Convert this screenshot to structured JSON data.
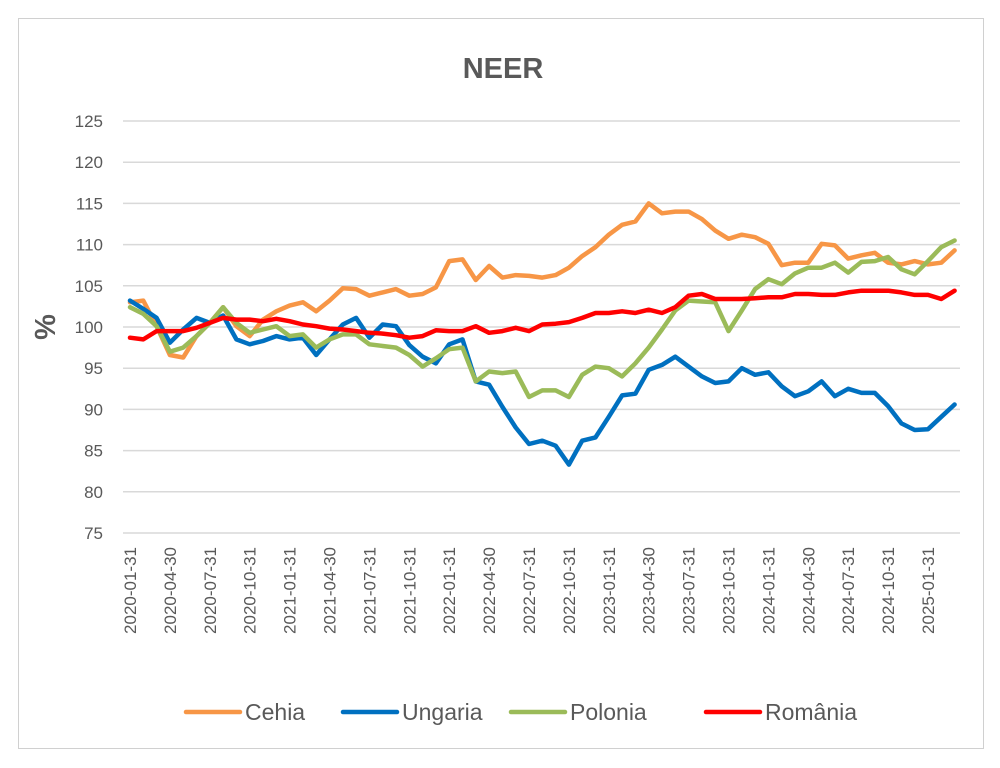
{
  "chart_data": {
    "type": "line",
    "title": "NEER",
    "xlabel": "",
    "ylabel": "%",
    "ylim": [
      75,
      125
    ],
    "yticks": [
      75,
      80,
      85,
      90,
      95,
      100,
      105,
      110,
      115,
      120,
      125
    ],
    "grid": true,
    "legend_position": "bottom",
    "x": [
      "2020-01-31",
      "2020-02-29",
      "2020-03-31",
      "2020-04-30",
      "2020-05-31",
      "2020-06-30",
      "2020-07-31",
      "2020-08-31",
      "2020-09-30",
      "2020-10-31",
      "2020-11-30",
      "2020-12-31",
      "2021-01-31",
      "2021-02-28",
      "2021-03-31",
      "2021-04-30",
      "2021-05-31",
      "2021-06-30",
      "2021-07-31",
      "2021-08-31",
      "2021-09-30",
      "2021-10-31",
      "2021-11-30",
      "2021-12-31",
      "2022-01-31",
      "2022-02-28",
      "2022-03-31",
      "2022-04-30",
      "2022-05-31",
      "2022-06-30",
      "2022-07-31",
      "2022-08-31",
      "2022-09-30",
      "2022-10-31",
      "2022-11-30",
      "2022-12-31",
      "2023-01-31",
      "2023-02-28",
      "2023-03-31",
      "2023-04-30",
      "2023-05-31",
      "2023-06-30",
      "2023-07-31",
      "2023-08-31",
      "2023-09-30",
      "2023-10-31",
      "2023-11-30",
      "2023-12-31",
      "2024-01-31",
      "2024-02-29",
      "2024-03-31",
      "2024-04-30",
      "2024-05-31",
      "2024-06-30",
      "2024-07-31",
      "2024-08-31",
      "2024-09-30",
      "2024-10-31",
      "2024-11-30",
      "2024-12-31",
      "2025-01-31",
      "2025-02-28",
      "2025-03-31"
    ],
    "tick_labels": [
      "2020-01-31",
      "2020-04-30",
      "2020-07-31",
      "2020-10-31",
      "2021-01-31",
      "2021-04-30",
      "2021-07-31",
      "2021-10-31",
      "2022-01-31",
      "2022-04-30",
      "2022-07-31",
      "2022-10-31",
      "2023-01-31",
      "2023-04-30",
      "2023-07-31",
      "2023-10-31",
      "2024-01-31",
      "2024-04-30",
      "2024-07-31",
      "2024-10-31",
      "2025-01-31"
    ],
    "series": [
      {
        "name": "Cehia",
        "color": "#F79646",
        "values": [
          103,
          103.2,
          100.1,
          96.6,
          96.3,
          98.9,
          100.5,
          102.4,
          100.1,
          98.9,
          100.9,
          101.9,
          102.6,
          103,
          101.9,
          103.2,
          104.7,
          104.6,
          103.8,
          104.2,
          104.6,
          103.8,
          104,
          104.8,
          108,
          108.2,
          105.7,
          107.4,
          106,
          106.3,
          106.2,
          106,
          106.3,
          107.2,
          108.6,
          109.7,
          111.2,
          112.4,
          112.8,
          115,
          113.8,
          114,
          114,
          113.1,
          111.7,
          110.7,
          111.2,
          110.9,
          110.1,
          107.5,
          107.8,
          107.8,
          110.1,
          109.9,
          108.3,
          108.7,
          109,
          107.8,
          107.6,
          108,
          107.6,
          107.8,
          109.3
        ]
      },
      {
        "name": "Ungaria",
        "color": "#0070C0",
        "values": [
          103.2,
          102.2,
          101.1,
          98.1,
          99.7,
          101.1,
          100.5,
          101.4,
          98.5,
          97.9,
          98.3,
          98.9,
          98.5,
          98.7,
          96.6,
          98.5,
          100.3,
          101.1,
          98.7,
          100.3,
          100.1,
          97.8,
          96.4,
          95.6,
          97.9,
          98.5,
          93.4,
          93,
          90.3,
          87.8,
          85.8,
          86.2,
          85.6,
          83.3,
          86.2,
          86.6,
          89.1,
          91.7,
          91.9,
          94.8,
          95.4,
          96.4,
          95.2,
          94,
          93.2,
          93.4,
          95,
          94.2,
          94.5,
          92.8,
          91.6,
          92.2,
          93.4,
          91.6,
          92.5,
          92,
          92,
          90.4,
          88.3,
          87.5,
          87.6,
          89.1,
          90.6
        ]
      },
      {
        "name": "Polonia",
        "color": "#9BBB59",
        "values": [
          102.4,
          101.6,
          100.1,
          97,
          97.5,
          98.9,
          100.5,
          102.4,
          100.5,
          99.3,
          99.7,
          100.1,
          98.9,
          99.1,
          97.5,
          98.5,
          99.1,
          99.1,
          97.9,
          97.7,
          97.5,
          96.6,
          95.2,
          96.2,
          97.3,
          97.5,
          93.4,
          94.6,
          94.4,
          94.6,
          91.5,
          92.3,
          92.3,
          91.5,
          94.2,
          95.2,
          95,
          94,
          95.6,
          97.5,
          99.7,
          102,
          103.2,
          103.1,
          103,
          99.5,
          102,
          104.6,
          105.8,
          105.2,
          106.5,
          107.2,
          107.2,
          107.8,
          106.6,
          107.9,
          108,
          108.5,
          107,
          106.4,
          108,
          109.7,
          110.5
        ]
      },
      {
        "name": "România",
        "color": "#FF0000",
        "values": [
          98.7,
          98.5,
          99.5,
          99.5,
          99.5,
          99.9,
          100.5,
          101.1,
          100.9,
          100.9,
          100.7,
          101,
          100.7,
          100.3,
          100.1,
          99.8,
          99.7,
          99.5,
          99.3,
          99.2,
          99,
          98.7,
          98.9,
          99.6,
          99.5,
          99.5,
          100.1,
          99.3,
          99.5,
          99.9,
          99.5,
          100.3,
          100.4,
          100.6,
          101.1,
          101.7,
          101.7,
          101.9,
          101.7,
          102.1,
          101.7,
          102.4,
          103.8,
          104,
          103.4,
          103.4,
          103.4,
          103.5,
          103.6,
          103.6,
          104,
          104,
          103.9,
          103.9,
          104.2,
          104.4,
          104.4,
          104.4,
          104.2,
          103.9,
          103.9,
          103.4,
          104.4
        ]
      }
    ]
  },
  "grid_color": "#D9D9D9"
}
